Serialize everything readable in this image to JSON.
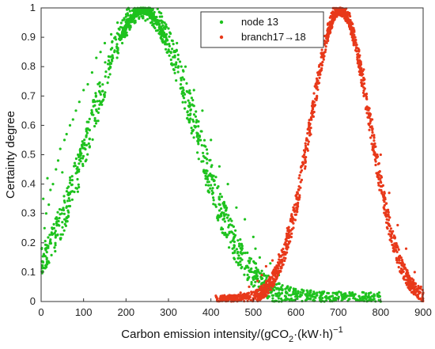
{
  "chart_data": {
    "type": "scatter",
    "xlabel": "Carbon emission intensity/(gCO",
    "xlabel_sub": "2",
    "xlabel_mid": "·(kW·h)",
    "xlabel_sup": "−1",
    "ylabel": "Certainty degree",
    "xlim": [
      0,
      900
    ],
    "ylim": [
      0,
      1
    ],
    "x_ticks": [
      "0",
      "100",
      "200",
      "300",
      "400",
      "500",
      "600",
      "700",
      "800",
      "900"
    ],
    "y_ticks": [
      "0",
      "0.1",
      "0.2",
      "0.3",
      "0.4",
      "0.5",
      "0.6",
      "0.7",
      "0.8",
      "0.9",
      "1"
    ],
    "legend_position": "top-right",
    "series": [
      {
        "name": "node 13",
        "color": "#1ec21e",
        "distribution": "normal-membership",
        "center": 240,
        "sigma": 120,
        "x_range": [
          0,
          800
        ],
        "points": [
          [
            5,
            0.35
          ],
          [
            8,
            0.25
          ],
          [
            10,
            0.18
          ],
          [
            12,
            0.3
          ],
          [
            15,
            0.42
          ],
          [
            18,
            0.33
          ],
          [
            22,
            0.38
          ],
          [
            28,
            0.4
          ],
          [
            35,
            0.45
          ],
          [
            40,
            0.48
          ],
          [
            45,
            0.52
          ],
          [
            50,
            0.44
          ],
          [
            55,
            0.55
          ],
          [
            60,
            0.57
          ],
          [
            68,
            0.6
          ],
          [
            75,
            0.62
          ],
          [
            82,
            0.65
          ],
          [
            90,
            0.68
          ],
          [
            100,
            0.72
          ],
          [
            110,
            0.74
          ],
          [
            120,
            0.78
          ],
          [
            130,
            0.83
          ],
          [
            140,
            0.85
          ],
          [
            150,
            0.88
          ],
          [
            165,
            0.91
          ],
          [
            180,
            0.95
          ],
          [
            200,
            0.97
          ],
          [
            220,
            0.99
          ],
          [
            240,
            1.0
          ],
          [
            260,
            0.99
          ],
          [
            280,
            0.97
          ],
          [
            300,
            0.93
          ],
          [
            320,
            0.88
          ],
          [
            340,
            0.8
          ],
          [
            360,
            0.72
          ],
          [
            380,
            0.65
          ],
          [
            400,
            0.55
          ],
          [
            420,
            0.46
          ],
          [
            440,
            0.4
          ],
          [
            460,
            0.32
          ],
          [
            480,
            0.28
          ],
          [
            500,
            0.22
          ],
          [
            505,
            0.18
          ],
          [
            515,
            0.15
          ],
          [
            540,
            0.13
          ],
          [
            560,
            0.09
          ],
          [
            580,
            0.05
          ],
          [
            600,
            0.03
          ],
          [
            625,
            0.02
          ],
          [
            700,
            0.01
          ],
          [
            800,
            0.0
          ]
        ]
      },
      {
        "name": "branch17→18",
        "color": "#e8391a",
        "distribution": "normal-membership",
        "center": 705,
        "sigma": 70,
        "x_range": [
          410,
          900
        ],
        "points": [
          [
            415,
            0.01
          ],
          [
            462,
            0.01
          ],
          [
            470,
            0.03
          ],
          [
            490,
            0.05
          ],
          [
            510,
            0.07
          ],
          [
            520,
            0.09
          ],
          [
            530,
            0.12
          ],
          [
            545,
            0.14
          ],
          [
            560,
            0.16
          ],
          [
            580,
            0.25
          ],
          [
            600,
            0.36
          ],
          [
            620,
            0.5
          ],
          [
            640,
            0.66
          ],
          [
            660,
            0.81
          ],
          [
            680,
            0.93
          ],
          [
            700,
            0.99
          ],
          [
            705,
            1.0
          ],
          [
            720,
            0.98
          ],
          [
            740,
            0.9
          ],
          [
            760,
            0.79
          ],
          [
            780,
            0.62
          ],
          [
            800,
            0.5
          ],
          [
            820,
            0.37
          ],
          [
            840,
            0.26
          ],
          [
            860,
            0.18
          ],
          [
            880,
            0.1
          ],
          [
            895,
            0.05
          ],
          [
            900,
            0.03
          ]
        ]
      }
    ]
  }
}
